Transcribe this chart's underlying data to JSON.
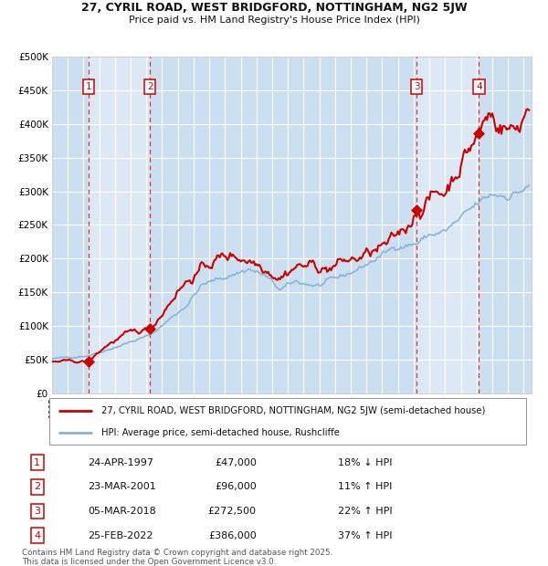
{
  "title_line1": "27, CYRIL ROAD, WEST BRIDGFORD, NOTTINGHAM, NG2 5JW",
  "title_line2": "Price paid vs. HM Land Registry's House Price Index (HPI)",
  "bg_color": "#dce9f5",
  "grid_color": "#ffffff",
  "red_line_color": "#cc0000",
  "blue_line_color": "#8ab4d4",
  "sale_marker_color": "#cc0000",
  "ylabel_values": [
    0,
    50000,
    100000,
    150000,
    200000,
    250000,
    300000,
    350000,
    400000,
    450000,
    500000
  ],
  "ylabel_labels": [
    "£0",
    "£50K",
    "£100K",
    "£150K",
    "£200K",
    "£250K",
    "£300K",
    "£350K",
    "£400K",
    "£450K",
    "£500K"
  ],
  "ylim": [
    0,
    500000
  ],
  "xlim_start": 1995.0,
  "xlim_end": 2025.5,
  "sales": [
    {
      "num": 1,
      "date": "24-APR-1997",
      "year": 1997.31,
      "price": 47000,
      "pct": "18%",
      "dir": "↓"
    },
    {
      "num": 2,
      "date": "23-MAR-2001",
      "year": 2001.23,
      "price": 96000,
      "pct": "11%",
      "dir": "↑"
    },
    {
      "num": 3,
      "date": "05-MAR-2018",
      "year": 2018.18,
      "price": 272500,
      "pct": "22%",
      "dir": "↑"
    },
    {
      "num": 4,
      "date": "25-FEB-2022",
      "year": 2022.15,
      "price": 386000,
      "pct": "37%",
      "dir": "↑"
    }
  ],
  "legend_label_red": "27, CYRIL ROAD, WEST BRIDGFORD, NOTTINGHAM, NG2 5JW (semi-detached house)",
  "legend_label_blue": "HPI: Average price, semi-detached house, Rushcliffe",
  "footer": "Contains HM Land Registry data © Crown copyright and database right 2025.\nThis data is licensed under the Open Government Licence v3.0.",
  "table_rows": [
    [
      "1",
      "24-APR-1997",
      "£47,000",
      "18% ↓ HPI"
    ],
    [
      "2",
      "23-MAR-2001",
      "£96,000",
      "11% ↑ HPI"
    ],
    [
      "3",
      "05-MAR-2018",
      "£272,500",
      "22% ↑ HPI"
    ],
    [
      "4",
      "25-FEB-2022",
      "£386,000",
      "37% ↑ HPI"
    ]
  ],
  "hpi_control_points": [
    [
      1995.0,
      51000
    ],
    [
      1997.31,
      56500
    ],
    [
      1998.5,
      65000
    ],
    [
      2001.23,
      86000
    ],
    [
      2003.5,
      130000
    ],
    [
      2004.5,
      160000
    ],
    [
      2007.5,
      185000
    ],
    [
      2008.5,
      175000
    ],
    [
      2009.5,
      153000
    ],
    [
      2010.5,
      165000
    ],
    [
      2012.0,
      160000
    ],
    [
      2013.0,
      168000
    ],
    [
      2014.5,
      185000
    ],
    [
      2016.0,
      205000
    ],
    [
      2017.0,
      220000
    ],
    [
      2018.18,
      223000
    ],
    [
      2019.0,
      235000
    ],
    [
      2020.0,
      240000
    ],
    [
      2021.0,
      258000
    ],
    [
      2022.15,
      281000
    ],
    [
      2023.0,
      295000
    ],
    [
      2024.0,
      295000
    ],
    [
      2025.3,
      305000
    ]
  ],
  "prop_control_points": [
    [
      1995.0,
      47500
    ],
    [
      1997.31,
      47000
    ],
    [
      1998.5,
      72000
    ],
    [
      1999.5,
      85000
    ],
    [
      2001.23,
      96000
    ],
    [
      2002.0,
      120000
    ],
    [
      2003.0,
      155000
    ],
    [
      2004.0,
      175000
    ],
    [
      2005.5,
      200000
    ],
    [
      2006.5,
      205000
    ],
    [
      2007.5,
      200000
    ],
    [
      2008.5,
      190000
    ],
    [
      2009.5,
      175000
    ],
    [
      2010.5,
      190000
    ],
    [
      2011.5,
      190000
    ],
    [
      2012.5,
      185000
    ],
    [
      2013.5,
      195000
    ],
    [
      2014.5,
      200000
    ],
    [
      2015.5,
      210000
    ],
    [
      2016.5,
      220000
    ],
    [
      2017.5,
      245000
    ],
    [
      2018.18,
      272500
    ],
    [
      2019.0,
      290000
    ],
    [
      2020.0,
      300000
    ],
    [
      2021.0,
      345000
    ],
    [
      2022.15,
      386000
    ],
    [
      2022.8,
      415000
    ],
    [
      2023.3,
      405000
    ],
    [
      2024.0,
      395000
    ],
    [
      2024.5,
      390000
    ],
    [
      2025.3,
      430000
    ]
  ]
}
